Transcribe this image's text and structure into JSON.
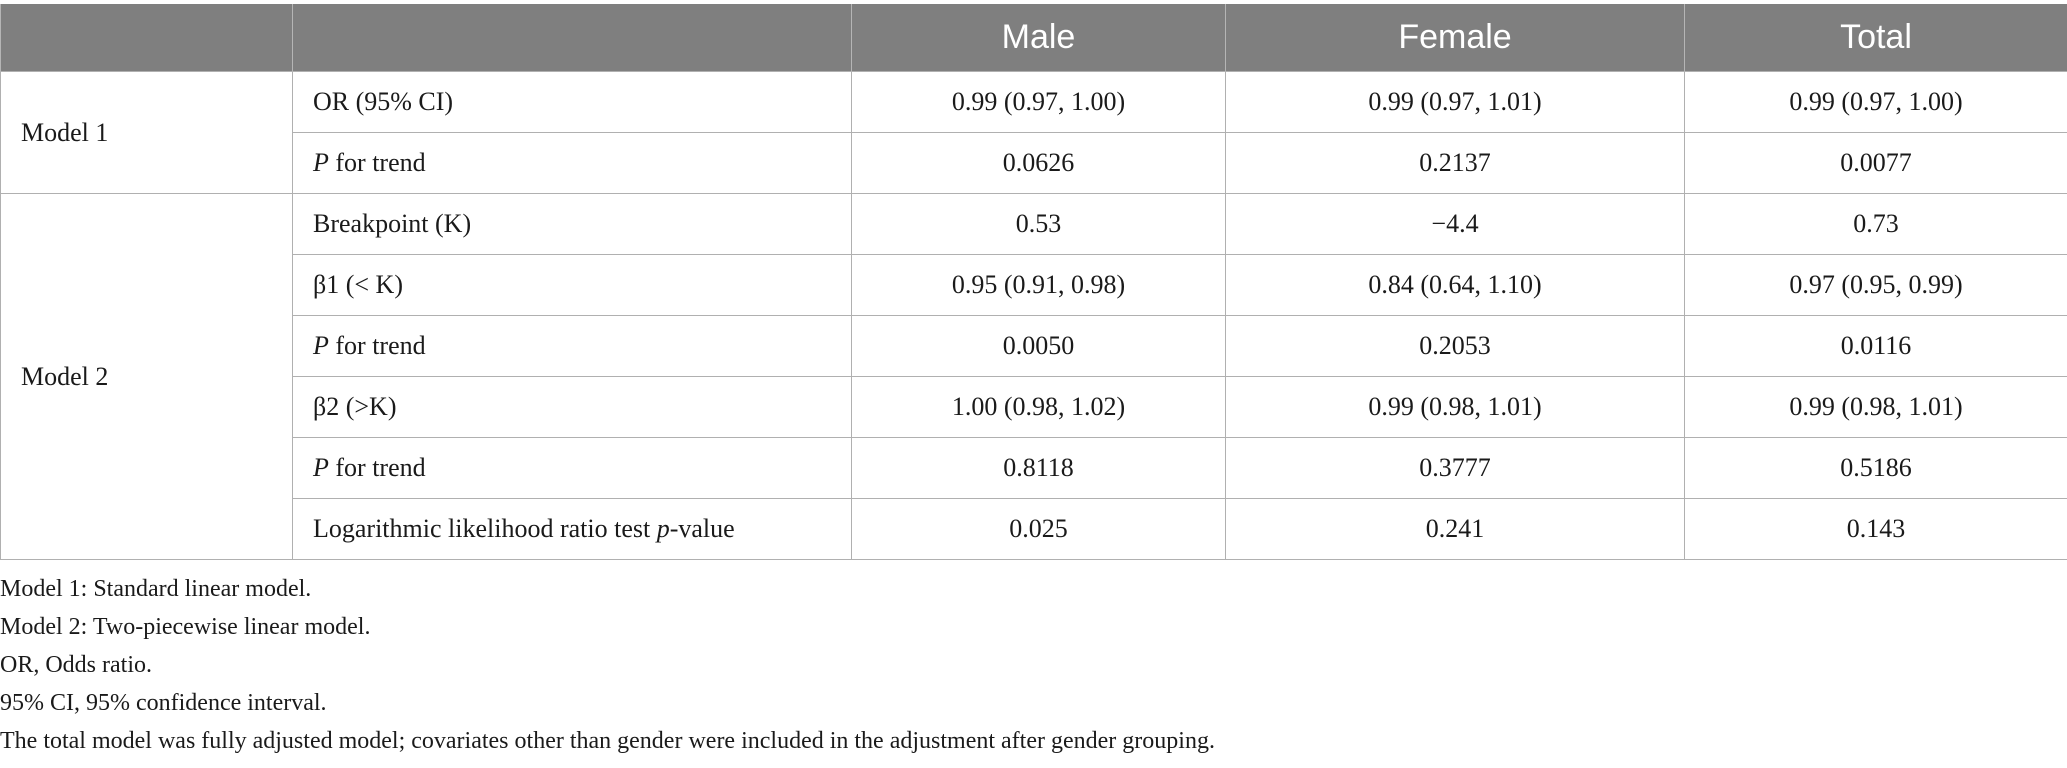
{
  "columns": [
    "",
    "",
    "Male",
    "Female",
    "Total"
  ],
  "model1": {
    "label": "Model 1",
    "rows": [
      {
        "label_pre": "",
        "label_italic": "",
        "label_post": "OR (95% CI)",
        "male": "0.99 (0.97, 1.00)",
        "female": "0.99 (0.97, 1.01)",
        "total": "0.99 (0.97, 1.00)"
      },
      {
        "label_pre": "",
        "label_italic": "P",
        "label_post": " for trend",
        "male": "0.0626",
        "female": "0.2137",
        "total": "0.0077"
      }
    ]
  },
  "model2": {
    "label": "Model 2",
    "rows": [
      {
        "label_pre": "",
        "label_italic": "",
        "label_post": "Breakpoint (K)",
        "male": "0.53",
        "female": "−4.4",
        "total": "0.73"
      },
      {
        "label_pre": "",
        "label_italic": "",
        "label_post": "β1 (< K)",
        "male": "0.95 (0.91, 0.98)",
        "female": "0.84 (0.64, 1.10)",
        "total": "0.97 (0.95, 0.99)"
      },
      {
        "label_pre": "",
        "label_italic": "P",
        "label_post": " for trend",
        "male": "0.0050",
        "female": "0.2053",
        "total": "0.0116"
      },
      {
        "label_pre": "",
        "label_italic": "",
        "label_post": "β2 (>K)",
        "male": "1.00 (0.98, 1.02)",
        "female": "0.99 (0.98, 1.01)",
        "total": "0.99 (0.98, 1.01)"
      },
      {
        "label_pre": "",
        "label_italic": "P",
        "label_post": " for trend",
        "male": "0.8118",
        "female": "0.3777",
        "total": "0.5186"
      },
      {
        "label_pre": "Logarithmic likelihood ratio test ",
        "label_italic": "p",
        "label_post": "-value",
        "male": "0.025",
        "female": "0.241",
        "total": "0.143"
      }
    ]
  },
  "notes": [
    "Model 1: Standard linear model.",
    "Model 2: Two-piecewise linear model.",
    "OR, Odds ratio.",
    "95% CI, 95% confidence interval.",
    "The total model was fully adjusted model; covariates other than gender were included in the adjustment after gender grouping."
  ]
}
